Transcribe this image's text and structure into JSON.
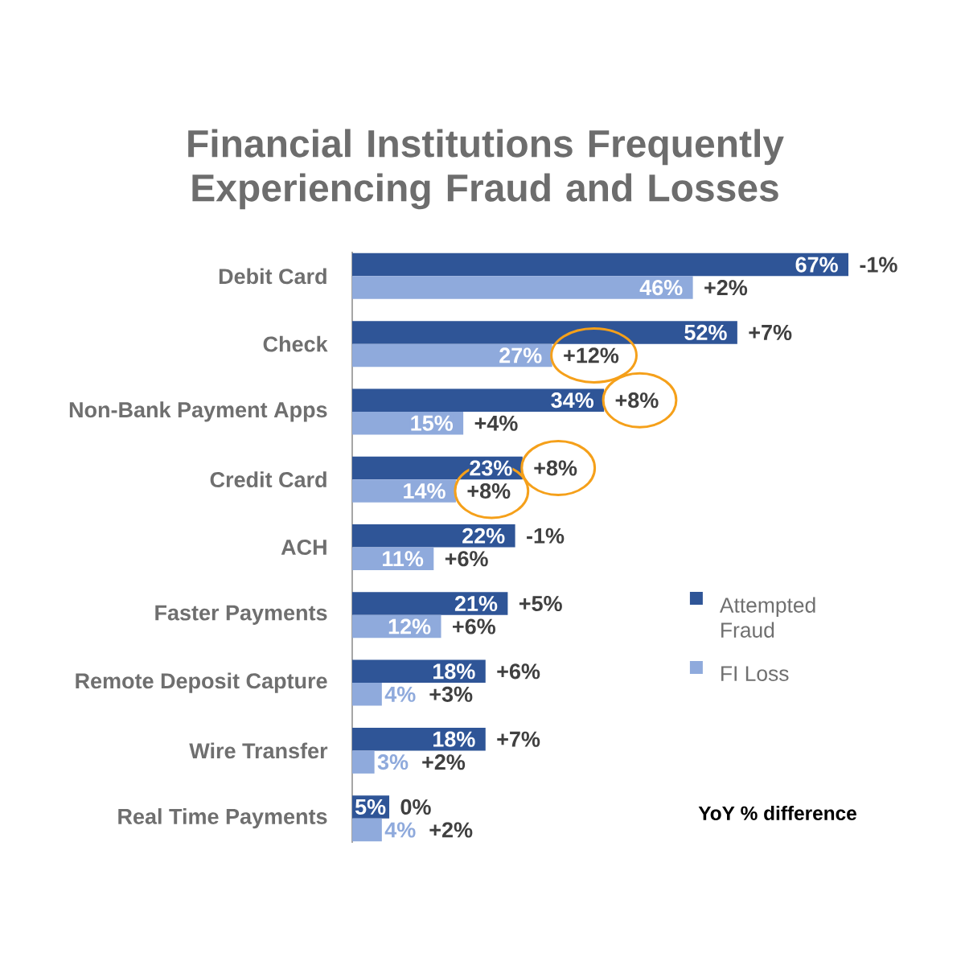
{
  "chart_data": {
    "type": "bar",
    "orientation": "horizontal",
    "title": "Financial Institutions Frequently Experiencing Fraud and Losses",
    "categories": [
      "Debit Card",
      "Check",
      "Non-Bank Payment Apps",
      "Credit Card",
      "ACH",
      "Faster Payments",
      "Remote Deposit Capture",
      "Wire Transfer",
      "Real Time Payments"
    ],
    "series": [
      {
        "name": "Attempted Fraud",
        "color": "#2F5597",
        "values": [
          67,
          52,
          34,
          23,
          22,
          21,
          18,
          18,
          5
        ],
        "value_labels": [
          "67%",
          "52%",
          "34%",
          "23%",
          "22%",
          "21%",
          "18%",
          "18%",
          "5%"
        ]
      },
      {
        "name": "FI Loss",
        "color": "#8FAADC",
        "values": [
          46,
          27,
          15,
          14,
          11,
          12,
          4,
          3,
          4
        ],
        "value_labels": [
          "46%",
          "27%",
          "15%",
          "14%",
          "11%",
          "12%",
          "4%",
          "3%",
          "4%"
        ]
      }
    ],
    "tick_labels": "y",
    "legend": "right",
    "annotations": [
      {
        "text": "-1%",
        "x": 67
      },
      {
        "text": "+2%",
        "x": 46
      },
      {
        "text": "+7%",
        "x": 52
      },
      {
        "text": "+12%",
        "x": 27
      },
      {
        "text": "+8%",
        "x": 34
      },
      {
        "text": "+4%",
        "x": 15
      },
      {
        "text": "+8%",
        "x": 23
      },
      {
        "text": "+8%",
        "x": 14
      },
      {
        "text": "-1%",
        "x": 22
      },
      {
        "text": "+6%",
        "x": 11
      },
      {
        "text": "+5%",
        "x": 21
      },
      {
        "text": "+6%",
        "x": 12
      },
      {
        "text": "+6%",
        "x": 18
      },
      {
        "text": "+3%",
        "x": 4
      },
      {
        "text": "+7%",
        "x": 18
      },
      {
        "text": "+2%",
        "x": 3
      },
      {
        "text": "0%",
        "x": 5
      },
      {
        "text": "+2%",
        "x": 4
      },
      "YoY % difference"
    ]
  }
}
